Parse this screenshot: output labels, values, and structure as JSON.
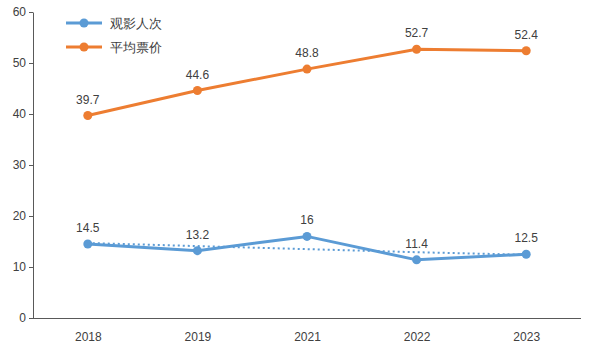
{
  "chart_data": {
    "type": "line",
    "categories": [
      "2018",
      "2019",
      "2021",
      "2022",
      "2023"
    ],
    "series": [
      {
        "name": "观影人次",
        "color": "#5b9bd5",
        "values": [
          14.5,
          13.2,
          16,
          11.4,
          12.5
        ],
        "marker": "circle",
        "line_style": "solid",
        "data_labels": true
      },
      {
        "name": "平均票价",
        "color": "#ed7d31",
        "values": [
          39.7,
          44.6,
          48.8,
          52.7,
          52.4
        ],
        "marker": "circle",
        "line_style": "solid",
        "data_labels": true
      },
      {
        "color": "#5b9bd5",
        "values": [
          14.7,
          14.1,
          13.5,
          12.9,
          12.4
        ],
        "marker": "none",
        "line_style": "dotted"
      }
    ],
    "ylim": [
      0,
      60
    ],
    "yticks": [
      0,
      10,
      20,
      30,
      40,
      50,
      60
    ],
    "grid": false,
    "legend": "upper left"
  }
}
